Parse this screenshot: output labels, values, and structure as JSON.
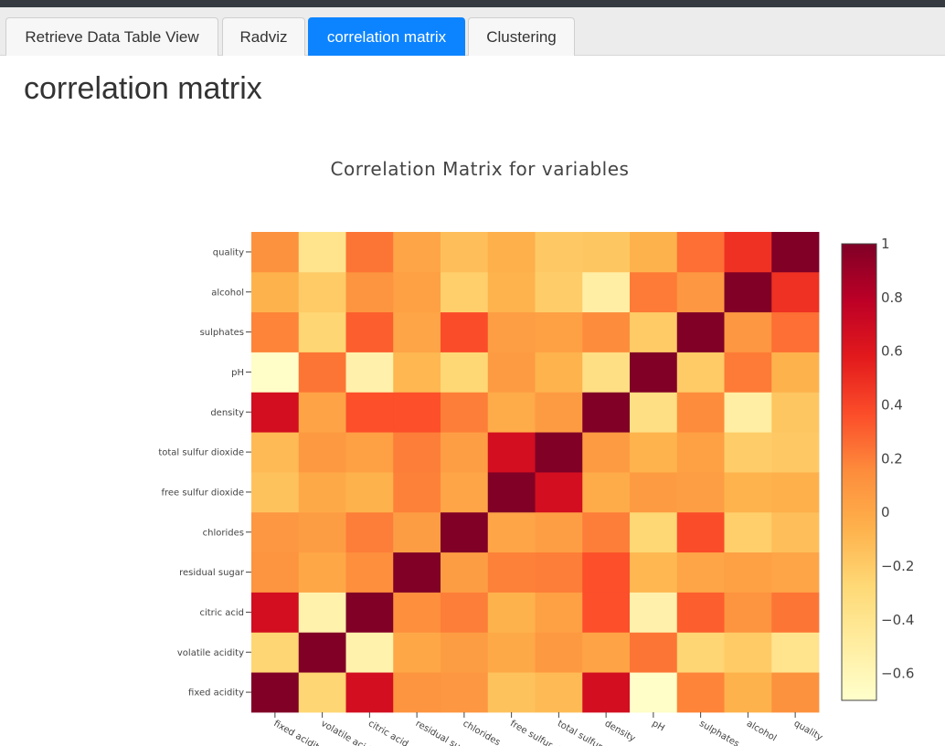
{
  "tabs": [
    {
      "label": "Retrieve Data Table View",
      "active": false
    },
    {
      "label": "Radviz",
      "active": false
    },
    {
      "label": "correlation matrix",
      "active": true
    },
    {
      "label": "Clustering",
      "active": false
    }
  ],
  "page": {
    "title": "correlation matrix"
  },
  "chart_data": {
    "type": "heatmap",
    "title": "Correlation Matrix for variables",
    "x_labels": [
      "fixed acidity",
      "volatile acidity",
      "citric acid",
      "residual sugar",
      "chlorides",
      "free sulfur dioxide",
      "total sulfur dioxide",
      "density",
      "pH",
      "sulphates",
      "alcohol",
      "quality"
    ],
    "y_labels": [
      "fixed acidity",
      "volatile acidity",
      "citric acid",
      "residual sugar",
      "chlorides",
      "free sulfur dioxide",
      "total sulfur dioxide",
      "density",
      "pH",
      "sulphates",
      "alcohol",
      "quality"
    ],
    "z": [
      [
        1.0,
        -0.26,
        0.67,
        0.11,
        0.09,
        -0.15,
        -0.11,
        0.67,
        -0.68,
        0.18,
        -0.06,
        0.12
      ],
      [
        -0.26,
        1.0,
        -0.55,
        0.0,
        0.06,
        -0.01,
        0.08,
        0.02,
        0.23,
        -0.26,
        -0.2,
        -0.39
      ],
      [
        0.67,
        -0.55,
        1.0,
        0.14,
        0.2,
        -0.06,
        0.04,
        0.36,
        -0.54,
        0.31,
        0.11,
        0.23
      ],
      [
        0.11,
        0.0,
        0.14,
        1.0,
        0.06,
        0.19,
        0.2,
        0.36,
        -0.09,
        0.01,
        0.04,
        0.01
      ],
      [
        0.09,
        0.06,
        0.2,
        0.06,
        1.0,
        0.01,
        0.05,
        0.2,
        -0.27,
        0.37,
        -0.22,
        -0.13
      ],
      [
        -0.15,
        -0.01,
        -0.06,
        0.19,
        0.01,
        1.0,
        0.67,
        -0.02,
        0.07,
        0.05,
        -0.07,
        -0.05
      ],
      [
        -0.11,
        0.08,
        0.04,
        0.2,
        0.05,
        0.67,
        1.0,
        0.07,
        -0.07,
        0.04,
        -0.21,
        -0.19
      ],
      [
        0.67,
        0.02,
        0.36,
        0.36,
        0.2,
        -0.02,
        0.07,
        1.0,
        -0.34,
        0.15,
        -0.5,
        -0.17
      ],
      [
        -0.68,
        0.23,
        -0.54,
        -0.09,
        -0.27,
        0.07,
        -0.07,
        -0.34,
        1.0,
        -0.2,
        0.21,
        -0.06
      ],
      [
        0.18,
        -0.26,
        0.31,
        0.01,
        0.37,
        0.05,
        0.04,
        0.15,
        -0.2,
        1.0,
        0.09,
        0.25
      ],
      [
        -0.06,
        -0.2,
        0.11,
        0.04,
        -0.22,
        -0.07,
        -0.21,
        -0.5,
        0.21,
        0.09,
        1.0,
        0.48
      ],
      [
        0.12,
        -0.39,
        0.23,
        0.01,
        -0.13,
        -0.05,
        -0.19,
        -0.17,
        -0.06,
        0.25,
        0.48,
        1.0
      ]
    ],
    "zlim": [
      -0.7,
      1
    ],
    "colorbar_ticks": [
      1,
      0.8,
      0.6,
      0.4,
      0.2,
      0,
      -0.2,
      -0.4,
      -0.6
    ],
    "colorbar_tick_labels": [
      "1",
      "0.8",
      "0.6",
      "0.4",
      "0.2",
      "0",
      "−0.2",
      "−0.4",
      "−0.6"
    ],
    "colorscale": [
      "#ffffcc",
      "#ffeda0",
      "#fed976",
      "#feb24c",
      "#fd8d3c",
      "#fc4e2a",
      "#e31a1c",
      "#bd0026",
      "#800026"
    ]
  }
}
